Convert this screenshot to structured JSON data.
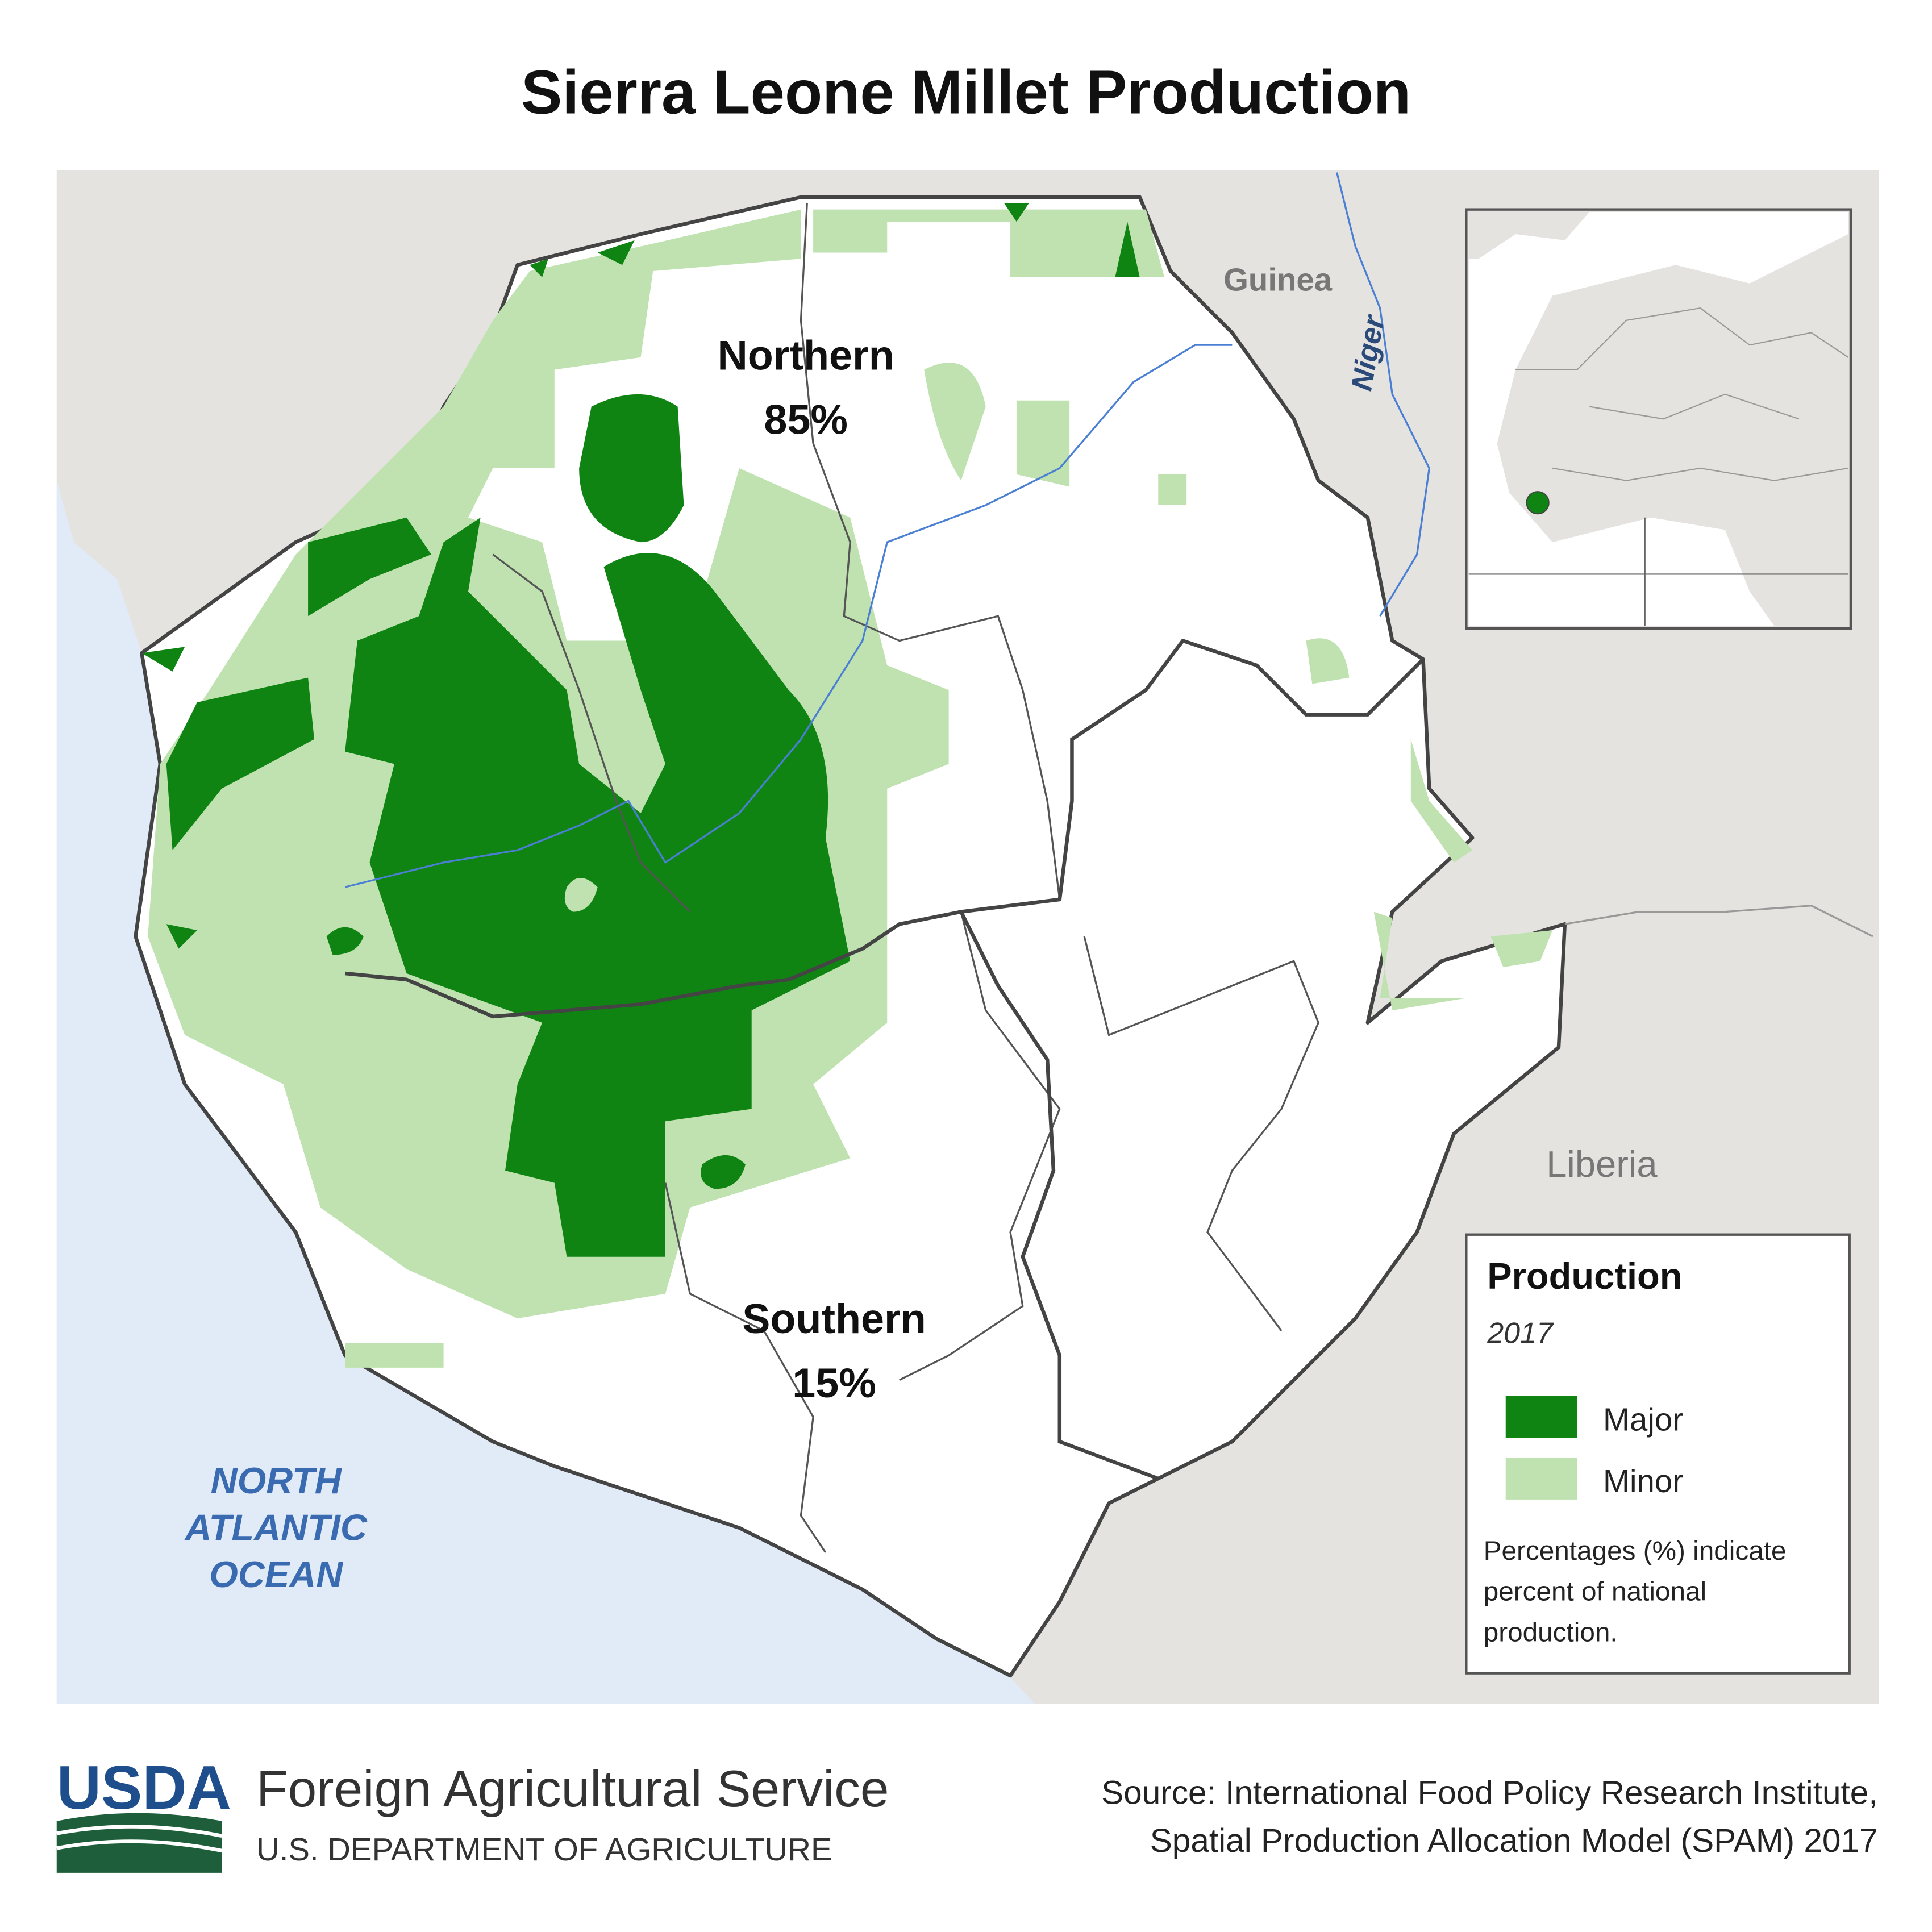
{
  "header": {
    "title": "Sierra Leone Millet Production"
  },
  "map": {
    "regions": [
      {
        "name": "Northern",
        "share": "85%"
      },
      {
        "name": "Southern",
        "share": "15%"
      }
    ],
    "countries": [
      "Guinea",
      "Liberia"
    ],
    "river": "Niger",
    "ocean": [
      "NORTH",
      "ATLANTIC",
      "OCEAN"
    ]
  },
  "legend": {
    "title": "Production",
    "year": "2017",
    "items": [
      {
        "label": "Major",
        "color": "#0f8412"
      },
      {
        "label": "Minor",
        "color": "#bfe2b0"
      }
    ],
    "note": [
      "Percentages (%) indicate",
      "percent of national",
      "production."
    ]
  },
  "footer": {
    "logo": "USDA",
    "agency": "Foreign Agricultural Service",
    "department": "U.S. DEPARTMENT OF AGRICULTURE",
    "source": [
      "Source: International Food Policy Research Institute,",
      "Spatial Production Allocation Model (SPAM) 2017"
    ]
  }
}
